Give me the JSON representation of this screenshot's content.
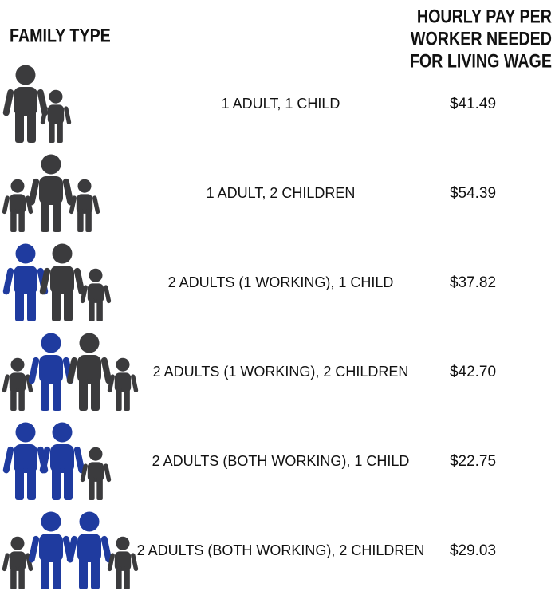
{
  "header": {
    "family_type": "FAMILY TYPE",
    "pay_lines": [
      "HOURLY PAY PER",
      "WORKER NEEDED",
      "FOR LIVING WAGE"
    ]
  },
  "rows": [
    {
      "label": "1 ADULT, 1 CHILD",
      "pay": "$41.49"
    },
    {
      "label": "1 ADULT, 2 CHILDREN",
      "pay": "$54.39"
    },
    {
      "label": "2 ADULTS (1 WORKING), 1 CHILD",
      "pay": "$37.82"
    },
    {
      "label": "2 ADULTS (1 WORKING), 2 CHILDREN",
      "pay": "$42.70"
    },
    {
      "label": "2 ADULTS (BOTH WORKING), 1 CHILD",
      "pay": "$22.75"
    },
    {
      "label": "2 ADULTS (BOTH WORKING), 2 CHILDREN",
      "pay": "$29.03"
    }
  ]
}
